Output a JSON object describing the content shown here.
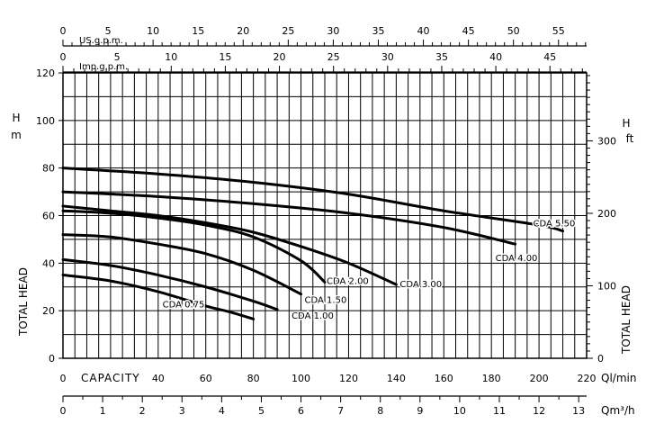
{
  "chart_data": {
    "type": "line",
    "title": "",
    "xlabel": "CAPACITY",
    "ylabel": "TOTAL HEAD",
    "xlim": [
      0,
      220
    ],
    "ylim": [
      0,
      120
    ],
    "grid": true,
    "axes": {
      "bottom_primary": {
        "unit": "Ql/min",
        "ticks": [
          "0",
          "20",
          "40",
          "60",
          "80",
          "100",
          "120",
          "140",
          "160",
          "180",
          "200",
          "220"
        ],
        "range": [
          0,
          220
        ]
      },
      "bottom_secondary": {
        "unit": "Qm³/h",
        "ticks": [
          "0",
          "1",
          "2",
          "3",
          "4",
          "5",
          "6",
          "7",
          "8",
          "9",
          "10",
          "11",
          "12",
          "13"
        ],
        "range": [
          0,
          13.2
        ]
      },
      "top_us": {
        "unit": "US.g.p.m.",
        "ticks": [
          "0",
          "5",
          "10",
          "15",
          "20",
          "25",
          "30",
          "35",
          "40",
          "45",
          "50",
          "55"
        ],
        "range": [
          0,
          58.12
        ]
      },
      "top_imp": {
        "unit": "Imp.g.p.m.",
        "ticks": [
          "0",
          "5",
          "10",
          "15",
          "20",
          "25",
          "30",
          "35",
          "40",
          "45"
        ],
        "range": [
          0,
          48.39
        ]
      },
      "left": {
        "unit_letters": [
          "H",
          "m"
        ],
        "ticks": [
          "0",
          "20",
          "40",
          "60",
          "80",
          "100",
          "120"
        ],
        "range": [
          0,
          120
        ]
      },
      "right": {
        "unit_letters": [
          "H",
          "ft"
        ],
        "ticks": [
          "0",
          "100",
          "200",
          "300"
        ],
        "range": [
          0,
          393.7
        ]
      }
    },
    "series": [
      {
        "name": "CDA 0.75",
        "x": [
          0,
          20,
          40,
          60,
          70,
          80
        ],
        "y": [
          35,
          32.5,
          28,
          22,
          19.5,
          16.5
        ]
      },
      {
        "name": "CDA 1.00",
        "x": [
          0,
          20,
          40,
          60,
          80,
          90
        ],
        "y": [
          41.5,
          39,
          35,
          30,
          24,
          20.5
        ]
      },
      {
        "name": "CDA 1.50",
        "x": [
          0,
          20,
          40,
          60,
          80,
          100
        ],
        "y": [
          52,
          51,
          48,
          44,
          37,
          27
        ]
      },
      {
        "name": "CDA 2.00",
        "x": [
          0,
          20,
          40,
          60,
          80,
          100,
          110
        ],
        "y": [
          62,
          61,
          59,
          56,
          51,
          41,
          32
        ]
      },
      {
        "name": "CDA 3.00",
        "x": [
          0,
          20,
          40,
          60,
          80,
          100,
          120,
          140
        ],
        "y": [
          64,
          62,
          60,
          57,
          53,
          47,
          40,
          31
        ]
      },
      {
        "name": "CDA 4.00",
        "x": [
          0,
          40,
          80,
          120,
          160,
          190
        ],
        "y": [
          70,
          68,
          65,
          61,
          55,
          48
        ]
      },
      {
        "name": "CDA 5.50",
        "x": [
          0,
          40,
          80,
          120,
          160,
          200,
          210
        ],
        "y": [
          80,
          77.5,
          74,
          69,
          62,
          56,
          53.5
        ]
      }
    ]
  }
}
